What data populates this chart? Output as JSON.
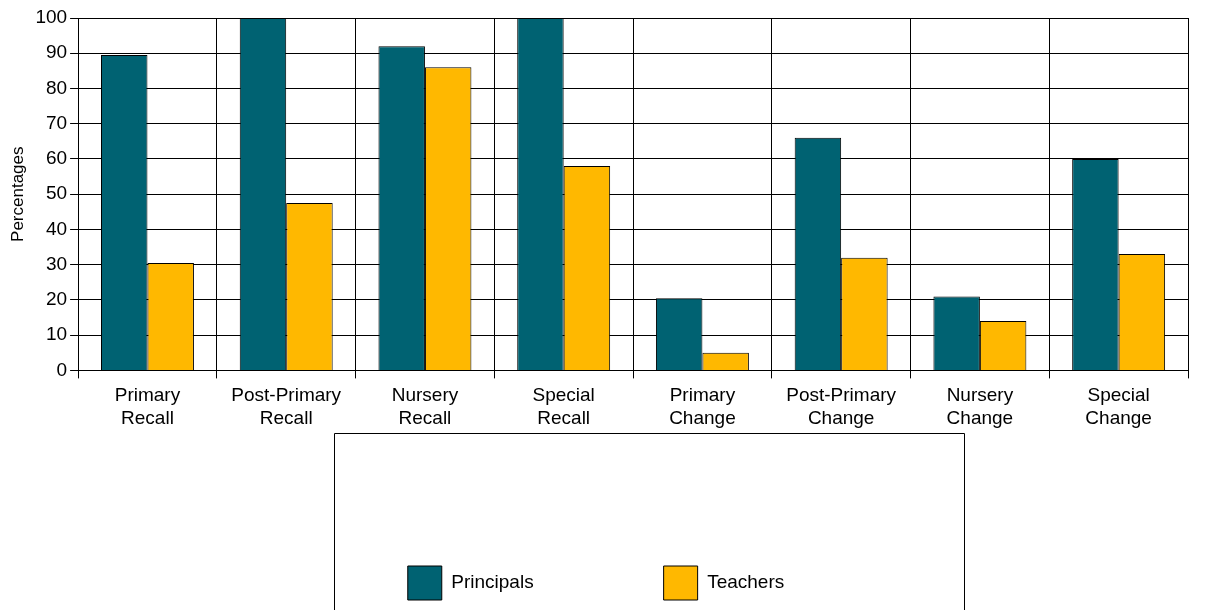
{
  "chart_data": {
    "type": "bar",
    "ylabel": "Percentages",
    "categories": [
      "Primary Recall",
      "Post-Primary Recall",
      "Nursery Recall",
      "Special Recall",
      "Primary Change",
      "Post-Primary Change",
      "Nursery Change",
      "Special Change"
    ],
    "series": [
      {
        "name": "Principals",
        "color": "#006272",
        "values": [
          89.5,
          100,
          92,
          100,
          20.5,
          66,
          21,
          60
        ]
      },
      {
        "name": "Teachers",
        "color": "#ffb800",
        "values": [
          30.5,
          47.5,
          86,
          58,
          5,
          32,
          14,
          33
        ]
      }
    ],
    "ylim": [
      0,
      100
    ],
    "yticks": [
      0,
      10,
      20,
      30,
      40,
      50,
      60,
      70,
      80,
      90,
      100
    ],
    "grid": true,
    "legend": "bottom"
  }
}
